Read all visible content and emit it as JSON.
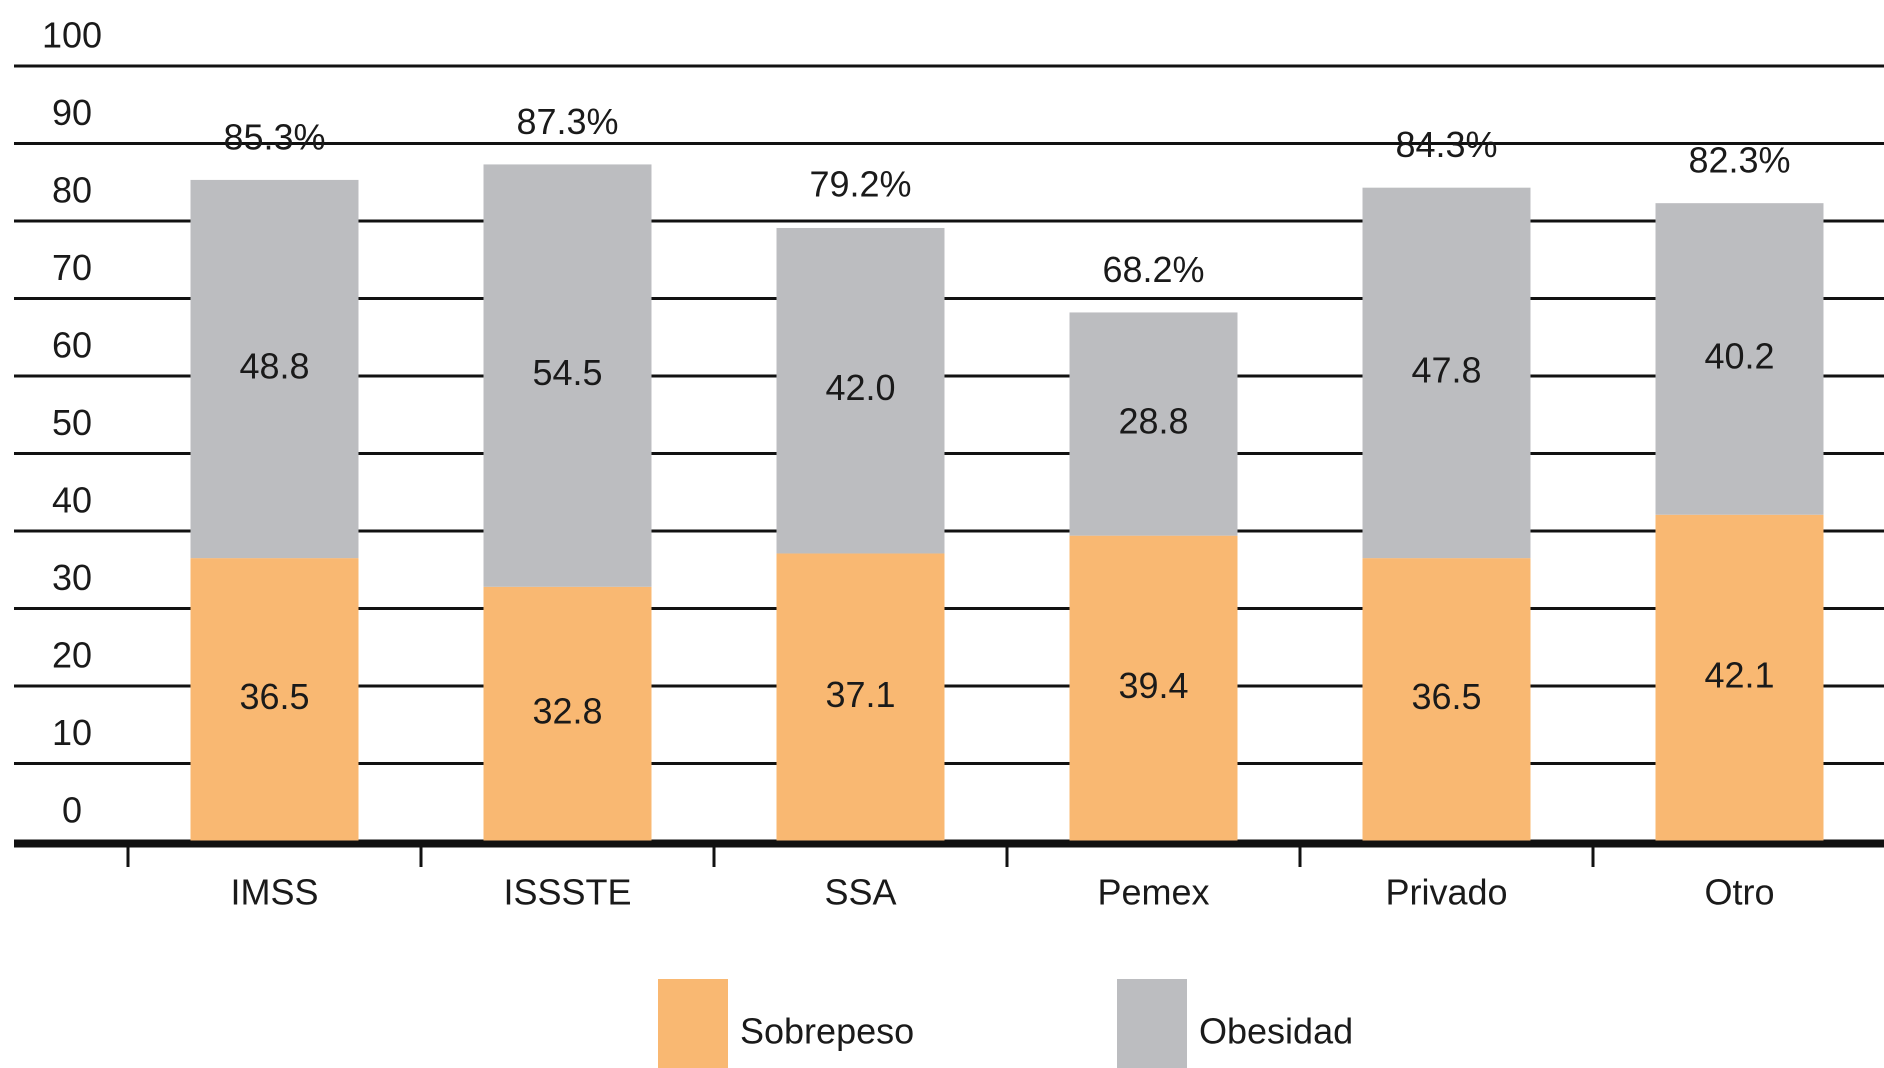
{
  "chart_data": {
    "type": "stacked_bar",
    "categories": [
      "IMSS",
      "ISSSTE",
      "SSA",
      "Pemex",
      "Privado",
      "Otro"
    ],
    "series": [
      {
        "name": "Sobrepeso",
        "color": "#f9b872",
        "values": [
          36.5,
          32.8,
          37.1,
          39.4,
          36.5,
          42.1
        ],
        "value_labels": [
          "36.5",
          "32.8",
          "37.1",
          "39.4",
          "36.5",
          "42.1"
        ]
      },
      {
        "name": "Obesidad",
        "color": "#bcbdc0",
        "values": [
          48.8,
          54.5,
          42,
          28.8,
          47.8,
          40.2
        ],
        "value_labels": [
          "48.8",
          "54.5",
          "42.0",
          "28.8",
          "47.8",
          "40.2"
        ]
      }
    ],
    "totals": [
      85.3,
      87.3,
      79.2,
      68.2,
      84.3,
      82.3
    ],
    "total_labels": [
      "85.3%",
      "87.3%",
      "79.2%",
      "68.2%",
      "84.3%",
      "82.3%"
    ],
    "ylim": [
      0,
      100
    ],
    "yticks": [
      0,
      10,
      20,
      30,
      40,
      50,
      60,
      70,
      80,
      90,
      100
    ],
    "grid": true,
    "legend": "bottom"
  }
}
